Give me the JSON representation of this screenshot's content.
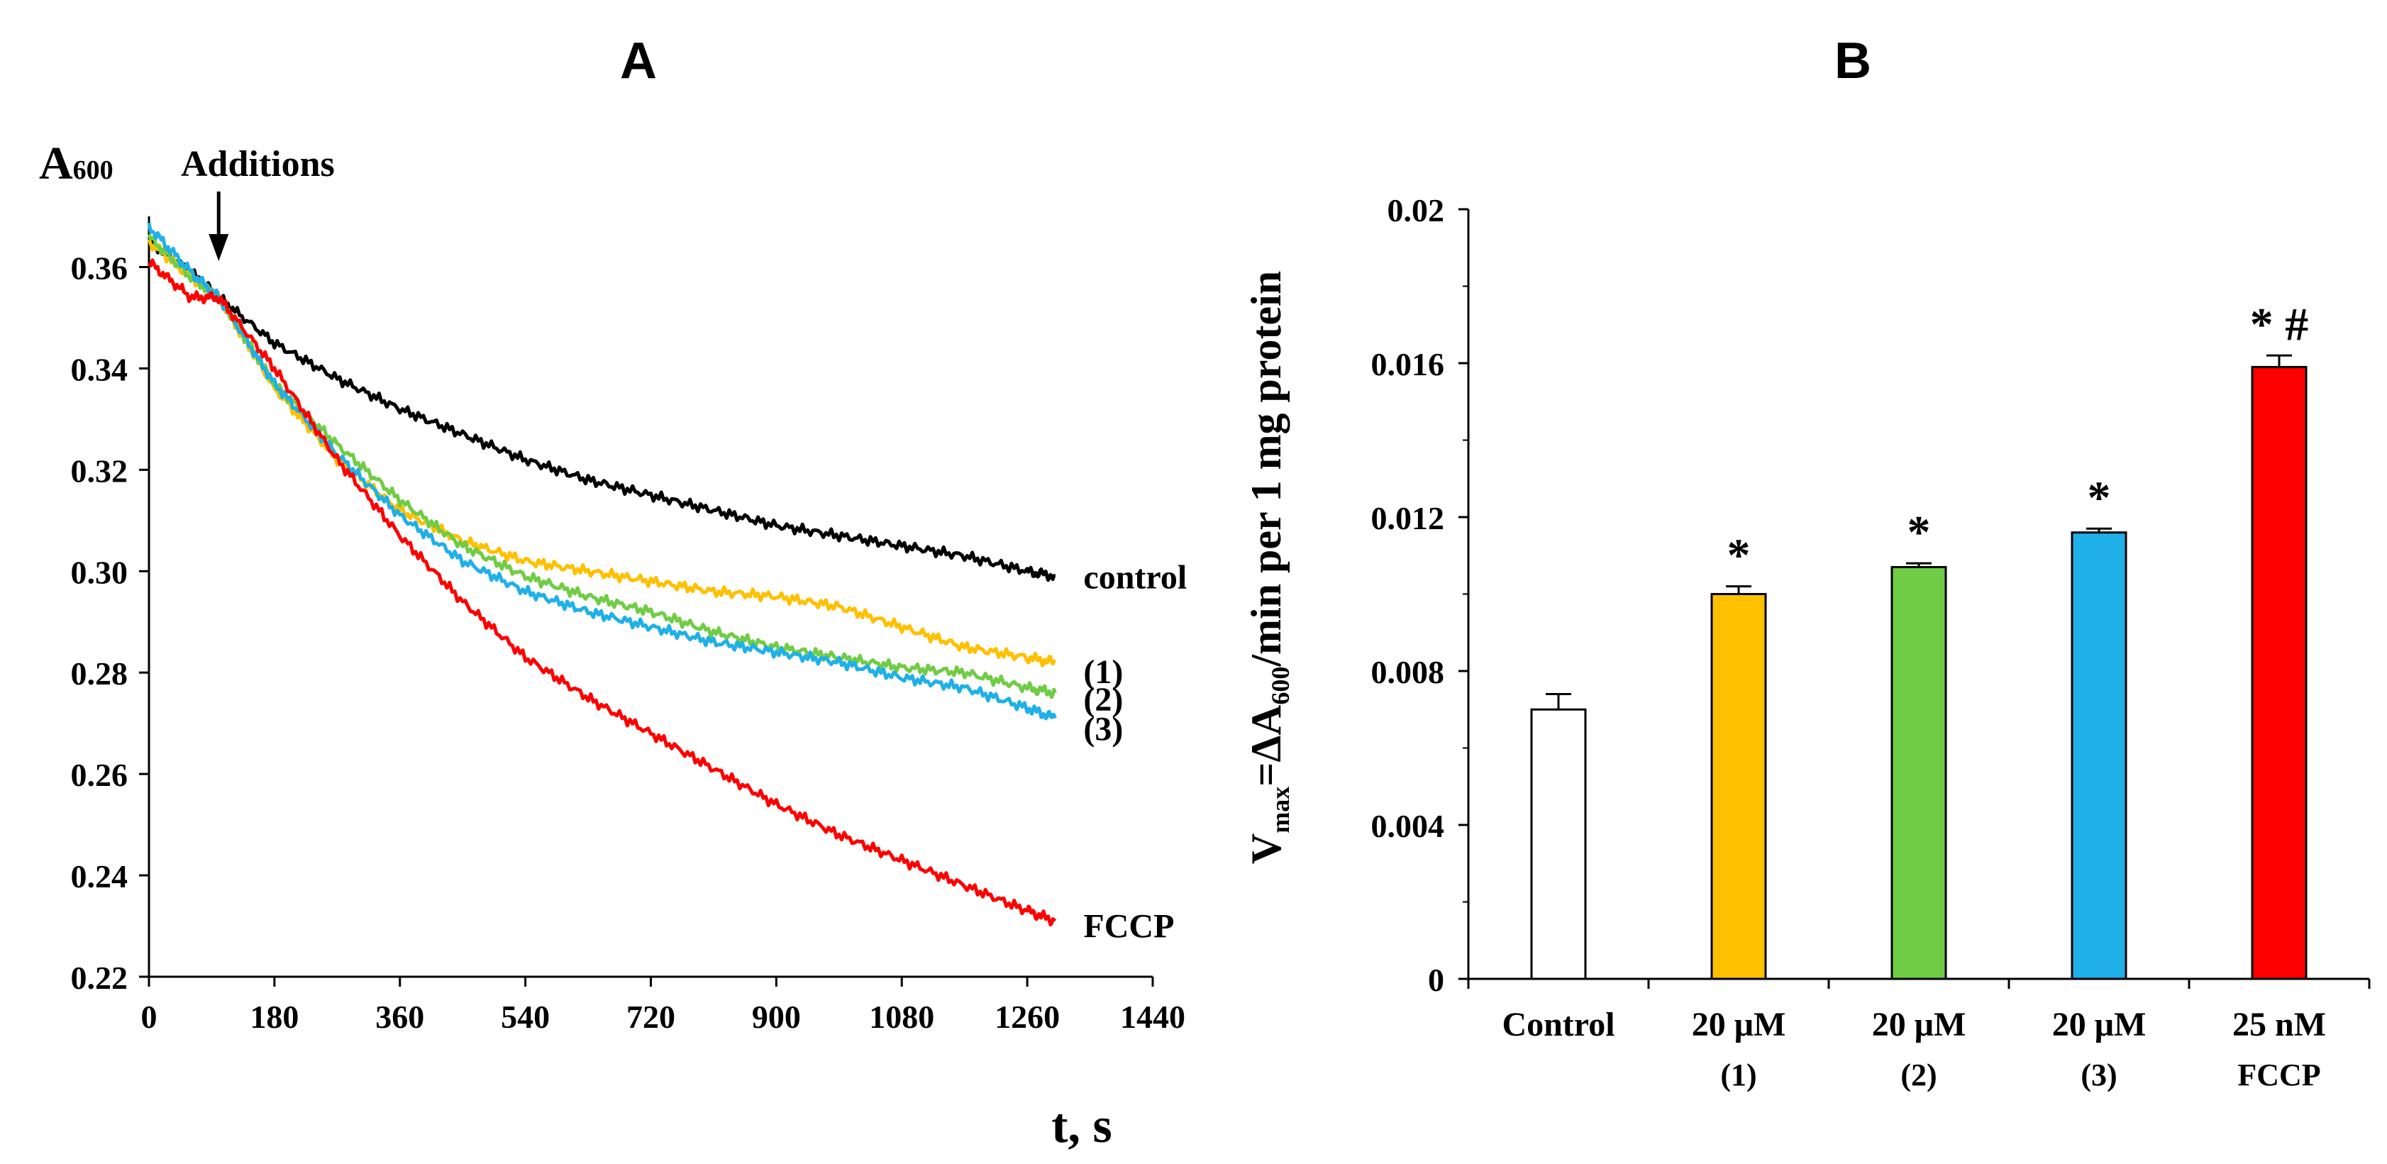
{
  "chart_data": [
    {
      "panel_label": "A",
      "type": "line",
      "title": "",
      "xlabel": "t, s",
      "ylabel": "A",
      "ylabel_sub": "600",
      "xlim": [
        0,
        1440
      ],
      "ylim": [
        0.22,
        0.37
      ],
      "x_ticks": [
        0,
        180,
        360,
        540,
        720,
        900,
        1080,
        1260,
        1440
      ],
      "x_tick_labels": [
        "0",
        "180",
        "360",
        "540",
        "720",
        "900",
        "1080",
        "1260",
        "1440"
      ],
      "y_ticks": [
        0.22,
        0.24,
        0.26,
        0.28,
        0.3,
        0.32,
        0.34,
        0.36
      ],
      "y_tick_labels": [
        "0.22",
        "0.24",
        "0.26",
        "0.28",
        "0.30",
        "0.32",
        "0.34",
        "0.36"
      ],
      "annotation": {
        "text": "Additions",
        "x": 100
      },
      "series": [
        {
          "name": "control",
          "color": "#000000",
          "x": [
            0,
            60,
            100,
            180,
            270,
            360,
            450,
            540,
            630,
            720,
            810,
            900,
            990,
            1080,
            1170,
            1260,
            1300
          ],
          "y": [
            0.365,
            0.359,
            0.354,
            0.345,
            0.338,
            0.332,
            0.327,
            0.322,
            0.318,
            0.315,
            0.312,
            0.309,
            0.307,
            0.305,
            0.303,
            0.3,
            0.299
          ]
        },
        {
          "name": "(1)",
          "color": "#ffc000",
          "x": [
            0,
            60,
            100,
            180,
            270,
            360,
            450,
            540,
            630,
            720,
            810,
            900,
            990,
            1080,
            1170,
            1260,
            1300
          ],
          "y": [
            0.365,
            0.358,
            0.354,
            0.336,
            0.322,
            0.312,
            0.306,
            0.302,
            0.3,
            0.298,
            0.296,
            0.295,
            0.293,
            0.289,
            0.285,
            0.283,
            0.282
          ]
        },
        {
          "name": "(2)",
          "color": "#70cc44",
          "x": [
            0,
            60,
            100,
            180,
            270,
            360,
            450,
            540,
            630,
            720,
            810,
            900,
            990,
            1080,
            1170,
            1260,
            1300
          ],
          "y": [
            0.366,
            0.358,
            0.354,
            0.337,
            0.325,
            0.314,
            0.305,
            0.299,
            0.295,
            0.292,
            0.288,
            0.285,
            0.283,
            0.281,
            0.28,
            0.277,
            0.276
          ]
        },
        {
          "name": "(3)",
          "color": "#1fb0e8",
          "x": [
            0,
            60,
            100,
            180,
            270,
            360,
            450,
            540,
            630,
            720,
            810,
            900,
            990,
            1080,
            1170,
            1260,
            1300
          ],
          "y": [
            0.368,
            0.359,
            0.354,
            0.337,
            0.323,
            0.311,
            0.302,
            0.296,
            0.292,
            0.289,
            0.286,
            0.284,
            0.282,
            0.279,
            0.277,
            0.273,
            0.271
          ]
        },
        {
          "name": "FCCP",
          "color": "#ff0000",
          "x": [
            0,
            60,
            100,
            180,
            270,
            360,
            450,
            540,
            630,
            720,
            810,
            900,
            990,
            1080,
            1170,
            1260,
            1300
          ],
          "y": [
            0.361,
            0.354,
            0.354,
            0.34,
            0.322,
            0.307,
            0.294,
            0.283,
            0.275,
            0.268,
            0.261,
            0.254,
            0.248,
            0.243,
            0.238,
            0.233,
            0.231
          ]
        }
      ]
    },
    {
      "panel_label": "B",
      "type": "bar",
      "title": "",
      "xlabel": "",
      "ylabel": "V",
      "ylabel_sub": "max",
      "ylabel_rest": "=ΔA",
      "ylabel_sub2": "600",
      "ylabel_end": "/min per 1 mg protein",
      "ylim": [
        0,
        0.02
      ],
      "y_ticks": [
        0,
        0.004,
        0.008,
        0.012,
        0.016,
        0.02
      ],
      "y_tick_labels": [
        "0",
        "0.004",
        "0.008",
        "0.012",
        "0.016",
        "0.02"
      ],
      "categories": [
        {
          "line1": "Control",
          "line2": ""
        },
        {
          "line1": "20 μM",
          "line2": "(1)"
        },
        {
          "line1": "20 μM",
          "line2": "(2)"
        },
        {
          "line1": "20 μM",
          "line2": "(3)"
        },
        {
          "line1": "25 nM",
          "line2": "FCCP"
        }
      ],
      "values": [
        0.007,
        0.01,
        0.0107,
        0.0116,
        0.0159
      ],
      "errors": [
        0.0004,
        0.0002,
        0.0001,
        0.0001,
        0.0003
      ],
      "colors": [
        "#ffffff",
        "#ffc000",
        "#70cc44",
        "#1fb0e8",
        "#ff0000"
      ],
      "significance": [
        "",
        "*",
        "*",
        "*",
        "* #"
      ]
    }
  ]
}
